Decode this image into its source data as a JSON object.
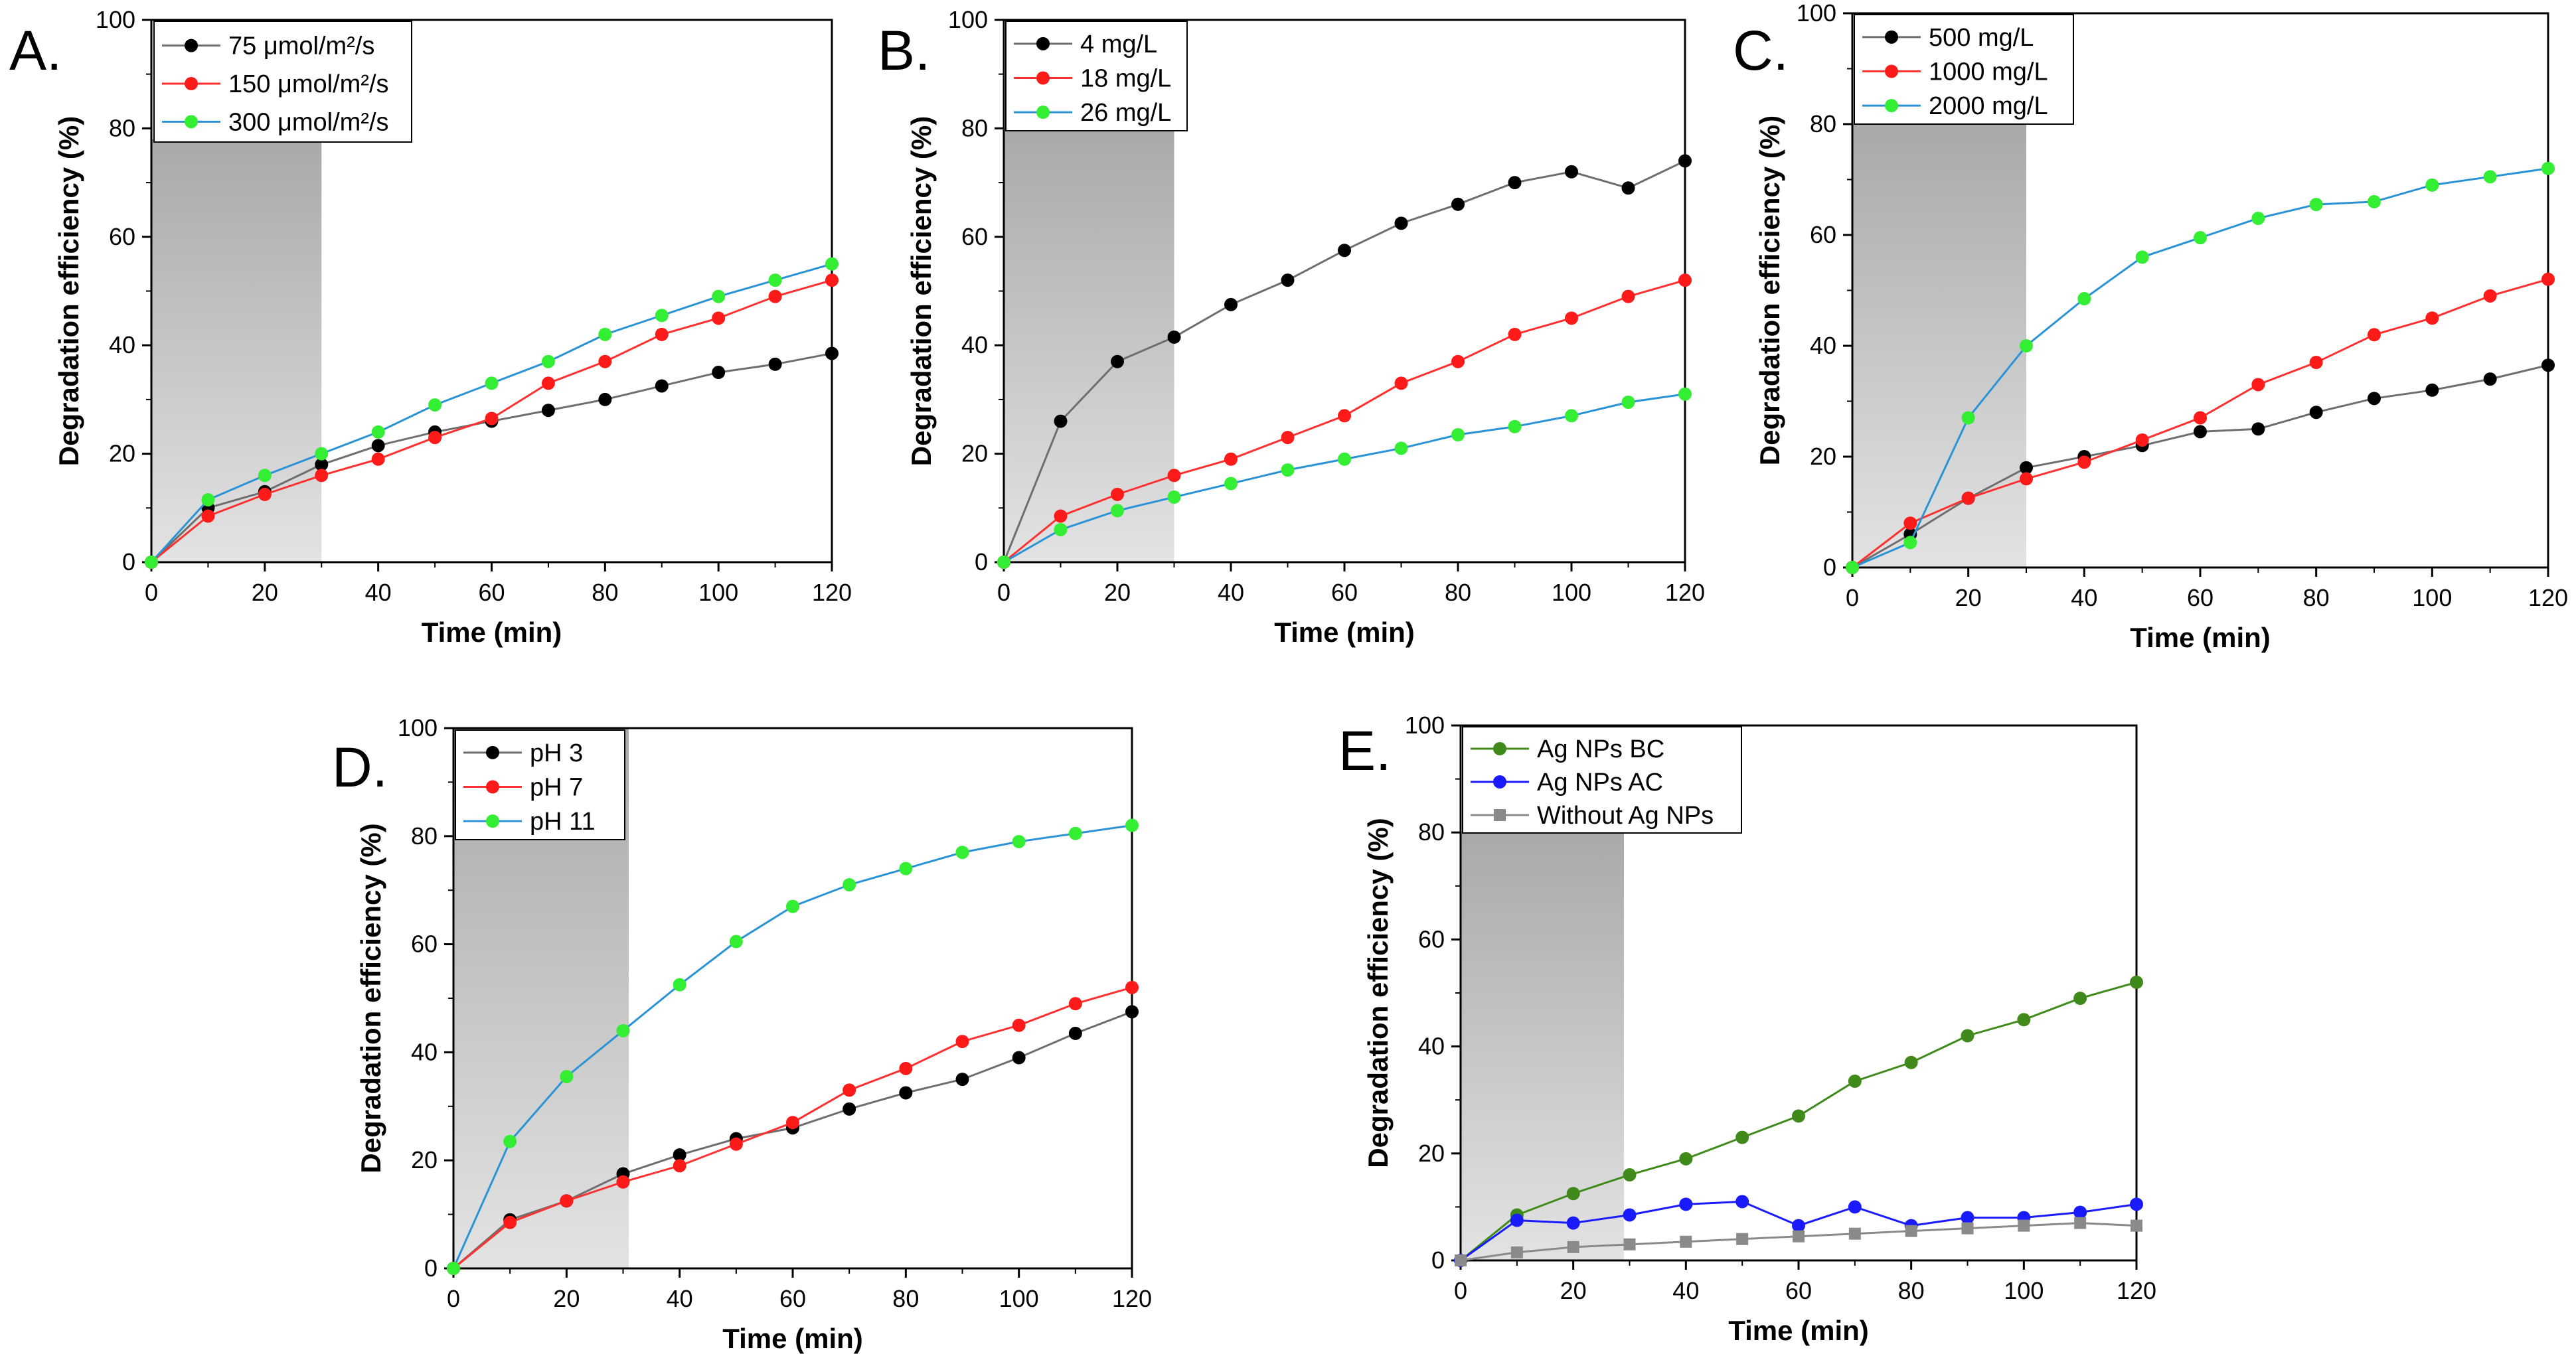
{
  "colors": {
    "black_series": "#000000",
    "black_line": "#6e6e6e",
    "red_series": "#ff1a1a",
    "red_line": "#ff3030",
    "green_series": "#33ee33",
    "blue_line": "#2a93d5",
    "olive_series": "#3f8a1a",
    "blue_series": "#1a1aff",
    "gray_series": "#8a8a8a",
    "dark_period_top": "#a8a8a8",
    "dark_period_bottom": "#e2e2e2"
  },
  "chart_data": [
    {
      "panel_label": "A.",
      "type": "line",
      "xlabel": "Time (min)",
      "ylabel": "Degradation efficiency (%)",
      "xlim": [
        0,
        120
      ],
      "ylim": [
        0,
        100
      ],
      "xticks": [
        0,
        20,
        40,
        60,
        80,
        100,
        120
      ],
      "yticks": [
        0,
        20,
        40,
        60,
        80,
        100
      ],
      "dark_period": [
        0,
        30
      ],
      "dark_top": 78,
      "legend_position": "top-left",
      "x": [
        0,
        10,
        20,
        30,
        40,
        50,
        60,
        70,
        80,
        90,
        100,
        110,
        120
      ],
      "series": [
        {
          "name": "75 μmol/m²/s",
          "marker": "circle",
          "marker_color": "#000000",
          "line_color": "#6e6e6e",
          "values": [
            0,
            10,
            13,
            18,
            21.5,
            24,
            26,
            28,
            30,
            32.5,
            35,
            36.5,
            38.5
          ]
        },
        {
          "name": "150 μmol/m²/s",
          "marker": "circle",
          "marker_color": "#ff1a1a",
          "line_color": "#ff3030",
          "values": [
            0,
            8.5,
            12.5,
            16,
            19,
            23,
            26.5,
            33,
            37,
            42,
            45,
            49,
            52
          ]
        },
        {
          "name": "300 μmol/m²/s",
          "marker": "circle",
          "marker_color": "#33ee33",
          "line_color": "#2a93d5",
          "values": [
            0,
            11.5,
            16,
            20,
            24,
            29,
            33,
            37,
            42,
            45.5,
            49,
            52,
            55
          ]
        }
      ]
    },
    {
      "panel_label": "B.",
      "type": "line",
      "xlabel": "Time (min)",
      "ylabel": "Degradation efficiency (%)",
      "xlim": [
        0,
        120
      ],
      "ylim": [
        0,
        100
      ],
      "xticks": [
        0,
        20,
        40,
        60,
        80,
        100,
        120
      ],
      "yticks": [
        0,
        20,
        40,
        60,
        80,
        100
      ],
      "dark_period": [
        0,
        30
      ],
      "dark_top": 80,
      "legend_position": "top-left",
      "x": [
        0,
        10,
        20,
        30,
        40,
        50,
        60,
        70,
        80,
        90,
        100,
        110,
        120
      ],
      "series": [
        {
          "name": "4 mg/L",
          "marker": "circle",
          "marker_color": "#000000",
          "line_color": "#6e6e6e",
          "values": [
            0,
            26,
            37,
            41.5,
            47.5,
            52,
            57.5,
            62.5,
            66,
            70,
            72,
            69,
            74
          ]
        },
        {
          "name": "18 mg/L",
          "marker": "circle",
          "marker_color": "#ff1a1a",
          "line_color": "#ff3030",
          "values": [
            0,
            8.5,
            12.5,
            16,
            19,
            23,
            27,
            33,
            37,
            42,
            45,
            49,
            52
          ]
        },
        {
          "name": "26 mg/L",
          "marker": "circle",
          "marker_color": "#33ee33",
          "line_color": "#2a93d5",
          "values": [
            0,
            6,
            9.5,
            12,
            14.5,
            17,
            19,
            21,
            23.5,
            25,
            27,
            29.5,
            31
          ]
        }
      ]
    },
    {
      "panel_label": "C.",
      "type": "line",
      "xlabel": "Time (min)",
      "ylabel": "Degradation efficiency (%)",
      "xlim": [
        0,
        120
      ],
      "ylim": [
        0,
        100
      ],
      "xticks": [
        0,
        20,
        40,
        60,
        80,
        100,
        120
      ],
      "yticks": [
        0,
        20,
        40,
        60,
        80,
        100
      ],
      "dark_period": [
        0,
        30
      ],
      "dark_top": 80,
      "legend_position": "top-left",
      "x": [
        0,
        10,
        20,
        30,
        40,
        50,
        60,
        70,
        80,
        90,
        100,
        110,
        120
      ],
      "series": [
        {
          "name": "500 mg/L",
          "marker": "circle",
          "marker_color": "#000000",
          "line_color": "#6e6e6e",
          "values": [
            0,
            6,
            12.5,
            18,
            20,
            22,
            24.5,
            25,
            28,
            30.5,
            32,
            34,
            36.5
          ]
        },
        {
          "name": "1000 mg/L",
          "marker": "circle",
          "marker_color": "#ff1a1a",
          "line_color": "#ff3030",
          "values": [
            0,
            8,
            12.5,
            16,
            19,
            23,
            27,
            33,
            37,
            42,
            45,
            49,
            52
          ]
        },
        {
          "name": "2000 mg/L",
          "marker": "circle",
          "marker_color": "#33ee33",
          "line_color": "#2a93d5",
          "values": [
            0,
            4.5,
            27,
            40,
            48.5,
            56,
            59.5,
            63,
            65.5,
            66,
            69,
            70.5,
            72
          ]
        }
      ]
    },
    {
      "panel_label": "D.",
      "type": "line",
      "xlabel": "Time (min)",
      "ylabel": "Degradation efficiency (%)",
      "xlim": [
        0,
        120
      ],
      "ylim": [
        0,
        100
      ],
      "xticks": [
        0,
        20,
        40,
        60,
        80,
        100,
        120
      ],
      "yticks": [
        0,
        20,
        40,
        60,
        80,
        100
      ],
      "dark_period": [
        0,
        31
      ],
      "dark_top": 100,
      "legend_position": "top-left",
      "x": [
        0,
        10,
        20,
        30,
        40,
        50,
        60,
        70,
        80,
        90,
        100,
        110,
        120
      ],
      "series": [
        {
          "name": "pH 3",
          "marker": "circle",
          "marker_color": "#000000",
          "line_color": "#6e6e6e",
          "values": [
            0,
            9,
            12.5,
            17.5,
            21,
            24,
            26,
            29.5,
            32.5,
            35,
            39,
            43.5,
            47.5
          ]
        },
        {
          "name": "pH 7",
          "marker": "circle",
          "marker_color": "#ff1a1a",
          "line_color": "#ff3030",
          "values": [
            0,
            8.5,
            12.5,
            16,
            19,
            23,
            27,
            33,
            37,
            42,
            45,
            49,
            52
          ]
        },
        {
          "name": "pH 11",
          "marker": "circle",
          "marker_color": "#33ee33",
          "line_color": "#2a93d5",
          "values": [
            0,
            23.5,
            35.5,
            44,
            52.5,
            60.5,
            67,
            71,
            74,
            77,
            79,
            80.5,
            82
          ]
        }
      ]
    },
    {
      "panel_label": "E.",
      "type": "line",
      "xlabel": "Time (min)",
      "ylabel": "Degradation efficiency (%)",
      "xlim": [
        0,
        120
      ],
      "ylim": [
        0,
        100
      ],
      "xticks": [
        0,
        20,
        40,
        60,
        80,
        100,
        120
      ],
      "yticks": [
        0,
        20,
        40,
        60,
        80,
        100
      ],
      "dark_period": [
        0,
        29
      ],
      "dark_top": 80,
      "legend_position": "top-left",
      "x": [
        0,
        10,
        20,
        30,
        40,
        50,
        60,
        70,
        80,
        90,
        100,
        110,
        120
      ],
      "series": [
        {
          "name": "Ag NPs BC",
          "marker": "circle",
          "marker_color": "#3f8a1a",
          "line_color": "#3f8a1a",
          "values": [
            0,
            8.5,
            12.5,
            16,
            19,
            23,
            27,
            33.5,
            37,
            42,
            45,
            49,
            52
          ]
        },
        {
          "name": "Ag NPs AC",
          "marker": "circle",
          "marker_color": "#1a1aff",
          "line_color": "#1a1aff",
          "values": [
            0,
            7.5,
            7,
            8.5,
            10.5,
            11,
            6.5,
            10,
            6.5,
            8,
            8,
            9,
            10.5
          ]
        },
        {
          "name": "Without Ag NPs",
          "marker": "square",
          "marker_color": "#8a8a8a",
          "line_color": "#8a8a8a",
          "values": [
            0,
            1.5,
            2.5,
            3,
            3.5,
            4,
            4.5,
            5,
            5.5,
            6,
            6.5,
            7,
            6.5
          ]
        }
      ]
    }
  ]
}
